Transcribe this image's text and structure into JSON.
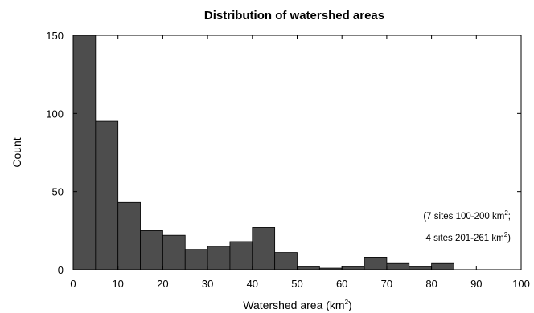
{
  "chart_data": {
    "type": "bar",
    "title": "Distribution of watershed areas",
    "xlabel": "Watershed area (km",
    "xlabel_sup": "2",
    "xlabel_end": ")",
    "ylabel": "Count",
    "xlim": [
      0,
      100
    ],
    "ylim": [
      0,
      150
    ],
    "xticks": [
      "0",
      "10",
      "20",
      "30",
      "40",
      "50",
      "60",
      "70",
      "80",
      "90",
      "100"
    ],
    "yticks": [
      "0",
      "50",
      "100",
      "150"
    ],
    "bin_width": 5,
    "bins": [
      {
        "x0": 0,
        "x1": 5,
        "count": 150
      },
      {
        "x0": 5,
        "x1": 10,
        "count": 95
      },
      {
        "x0": 10,
        "x1": 15,
        "count": 43
      },
      {
        "x0": 15,
        "x1": 20,
        "count": 25
      },
      {
        "x0": 20,
        "x1": 25,
        "count": 22
      },
      {
        "x0": 25,
        "x1": 30,
        "count": 13
      },
      {
        "x0": 30,
        "x1": 35,
        "count": 15
      },
      {
        "x0": 35,
        "x1": 40,
        "count": 18
      },
      {
        "x0": 40,
        "x1": 45,
        "count": 27
      },
      {
        "x0": 45,
        "x1": 50,
        "count": 11
      },
      {
        "x0": 50,
        "x1": 55,
        "count": 2
      },
      {
        "x0": 55,
        "x1": 60,
        "count": 1
      },
      {
        "x0": 60,
        "x1": 65,
        "count": 2
      },
      {
        "x0": 65,
        "x1": 70,
        "count": 8
      },
      {
        "x0": 70,
        "x1": 75,
        "count": 4
      },
      {
        "x0": 75,
        "x1": 80,
        "count": 2
      },
      {
        "x0": 80,
        "x1": 85,
        "count": 4
      }
    ],
    "annotation": {
      "line1": "(7 sites 100-200 km",
      "line1_sup": "2",
      "line1_end": ";",
      "line2": "4 sites 201-261 km",
      "line2_sup": "2",
      "line2_end": ")"
    },
    "bar_color": "#4d4d4d",
    "bar_edge_color": "#000000",
    "grid": false,
    "legend": "none"
  }
}
